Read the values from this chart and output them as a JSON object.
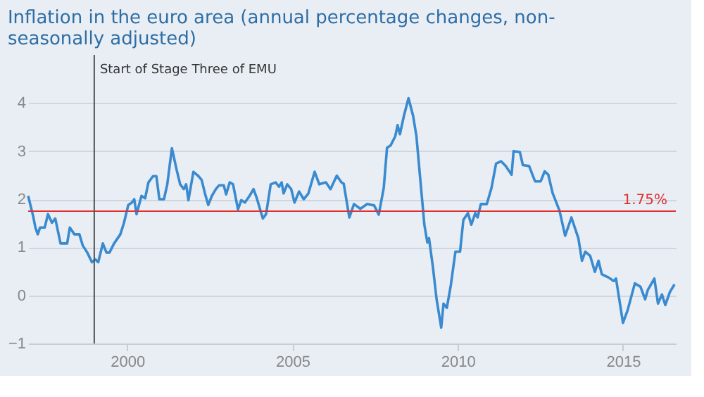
{
  "chart_data": {
    "type": "line",
    "title": "Inflation in the euro area (annual percentage changes, non-seasonally adjusted)",
    "x": [
      1997.0,
      1997.15,
      1997.22,
      1997.29,
      1997.36,
      1997.5,
      1997.6,
      1997.72,
      1997.82,
      1997.98,
      1998.18,
      1998.26,
      1998.4,
      1998.55,
      1998.65,
      1998.79,
      1998.93,
      1999.03,
      1999.12,
      1999.26,
      1999.37,
      1999.46,
      1999.6,
      1999.79,
      1999.9,
      2000.03,
      2000.14,
      2000.21,
      2000.28,
      2000.43,
      2000.54,
      2000.64,
      2000.78,
      2000.88,
      2000.97,
      2001.11,
      2001.21,
      2001.35,
      2001.5,
      2001.6,
      2001.71,
      2001.78,
      2001.85,
      2002.0,
      2002.14,
      2002.25,
      2002.35,
      2002.45,
      2002.56,
      2002.68,
      2002.78,
      2002.92,
      2002.99,
      2003.1,
      2003.2,
      2003.35,
      2003.45,
      2003.56,
      2003.7,
      2003.82,
      2003.92,
      2004.1,
      2004.2,
      2004.34,
      2004.49,
      2004.59,
      2004.67,
      2004.73,
      2004.84,
      2004.96,
      2005.06,
      2005.2,
      2005.34,
      2005.48,
      2005.67,
      2005.81,
      2006.01,
      2006.15,
      2006.34,
      2006.48,
      2006.55,
      2006.72,
      2006.86,
      2007.05,
      2007.26,
      2007.47,
      2007.61,
      2007.76,
      2007.86,
      2007.97,
      2008.11,
      2008.18,
      2008.25,
      2008.37,
      2008.51,
      2008.65,
      2008.75,
      2008.89,
      2008.99,
      2009.08,
      2009.13,
      2009.25,
      2009.36,
      2009.5,
      2009.57,
      2009.67,
      2009.79,
      2009.93,
      2010.07,
      2010.17,
      2010.31,
      2010.41,
      2010.53,
      2010.6,
      2010.7,
      2010.88,
      2011.02,
      2011.16,
      2011.31,
      2011.45,
      2011.63,
      2011.69,
      2011.88,
      2011.97,
      2012.16,
      2012.34,
      2012.51,
      2012.63,
      2012.74,
      2012.87,
      2013.08,
      2013.25,
      2013.44,
      2013.65,
      2013.76,
      2013.86,
      2014.01,
      2014.15,
      2014.26,
      2014.36,
      2014.57,
      2014.72,
      2014.79,
      2015.0,
      2015.14,
      2015.36,
      2015.53,
      2015.67,
      2015.75,
      2015.95,
      2016.06,
      2016.18,
      2016.28,
      2016.42,
      2016.56
    ],
    "series": [
      {
        "color": "#3a8ad0",
        "values": [
          2.07,
          1.65,
          1.41,
          1.27,
          1.41,
          1.41,
          1.69,
          1.51,
          1.6,
          1.08,
          1.08,
          1.41,
          1.27,
          1.27,
          1.04,
          0.89,
          0.69,
          0.75,
          0.69,
          1.08,
          0.89,
          0.89,
          1.08,
          1.27,
          1.51,
          1.88,
          1.93,
          2.0,
          1.69,
          2.07,
          2.02,
          2.35,
          2.48,
          2.48,
          2.0,
          2.0,
          2.31,
          3.06,
          2.59,
          2.31,
          2.21,
          2.31,
          1.98,
          2.57,
          2.49,
          2.4,
          2.12,
          1.88,
          2.07,
          2.21,
          2.29,
          2.29,
          2.1,
          2.35,
          2.31,
          1.79,
          1.98,
          1.93,
          2.07,
          2.21,
          2.02,
          1.6,
          1.69,
          2.31,
          2.35,
          2.26,
          2.35,
          2.12,
          2.31,
          2.21,
          1.93,
          2.16,
          2.0,
          2.12,
          2.57,
          2.31,
          2.35,
          2.21,
          2.49,
          2.35,
          2.32,
          1.62,
          1.9,
          1.8,
          1.9,
          1.87,
          1.68,
          2.23,
          3.07,
          3.12,
          3.31,
          3.54,
          3.35,
          3.73,
          4.1,
          3.73,
          3.31,
          2.23,
          1.47,
          1.1,
          1.19,
          0.58,
          -0.08,
          -0.67,
          -0.17,
          -0.26,
          0.21,
          0.91,
          0.91,
          1.57,
          1.71,
          1.47,
          1.71,
          1.62,
          1.9,
          1.9,
          2.23,
          2.74,
          2.79,
          2.69,
          2.51,
          3.0,
          2.98,
          2.71,
          2.69,
          2.37,
          2.37,
          2.58,
          2.51,
          2.13,
          1.76,
          1.24,
          1.62,
          1.19,
          0.72,
          0.91,
          0.82,
          0.49,
          0.72,
          0.44,
          0.37,
          0.3,
          0.35,
          -0.57,
          -0.31,
          0.25,
          0.18,
          -0.08,
          0.11,
          0.35,
          -0.17,
          0.02,
          -0.2,
          0.07,
          0.23
        ]
      }
    ],
    "xlim": [
      1997.0,
      2016.6
    ],
    "xticks": [
      2000,
      2005,
      2010,
      2015
    ],
    "ylim": [
      -1,
      5
    ],
    "yticks": [
      -1,
      0,
      1,
      2,
      3,
      4
    ],
    "grid": "y",
    "ref_lines": [
      {
        "axis": "y",
        "value": 1.75,
        "label": "1.75%",
        "color": "#e03030"
      },
      {
        "axis": "x",
        "value": 1999.0,
        "label": "Start of Stage Three of EMU",
        "color": "#555555"
      }
    ]
  }
}
